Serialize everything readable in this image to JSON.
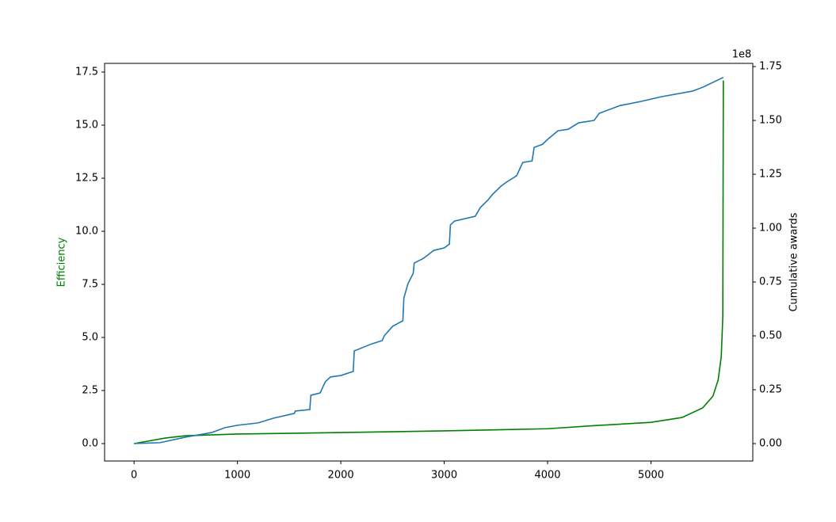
{
  "chart_data": {
    "type": "line",
    "ylabel": "Efficiency",
    "ylabel_color": "#008000",
    "y2label": "Cumulative awards",
    "y2_offset": "1e8",
    "xlim": [
      -285,
      5985
    ],
    "xticks": [
      0,
      1000,
      2000,
      3000,
      4000,
      5000
    ],
    "ylim": [
      -0.82,
      17.91
    ],
    "yticks": [
      {
        "value": 0,
        "label": "0.0"
      },
      2.5,
      {
        "value": 5,
        "label": "5.0"
      },
      7.5,
      {
        "value": 10,
        "label": "10.0"
      },
      12.5,
      {
        "value": 15,
        "label": "15.0"
      },
      17.5
    ],
    "y2lim": [
      -8100000,
      176500000
    ],
    "y2ticks": [
      {
        "value": 0,
        "label": "0.00"
      },
      {
        "value": 25000000,
        "label": "0.25"
      },
      {
        "value": 50000000,
        "label": "0.50"
      },
      {
        "value": 75000000,
        "label": "0.75"
      },
      {
        "value": 100000000,
        "label": "1.00"
      },
      {
        "value": 125000000,
        "label": "1.25"
      },
      {
        "value": 150000000,
        "label": "1.50"
      },
      {
        "value": 175000000,
        "label": "1.75"
      }
    ],
    "series": [
      {
        "color": "#008000",
        "x": [
          0,
          300,
          500,
          1000,
          2000,
          3000,
          4000,
          4500,
          5000,
          5300,
          5500,
          5600,
          5650,
          5680,
          5695,
          5700
        ],
        "values": [
          0,
          0.26,
          0.37,
          0.45,
          0.52,
          0.6,
          0.7,
          0.86,
          1.0,
          1.23,
          1.68,
          2.24,
          3.0,
          4.1,
          6.0,
          17.1
        ]
      },
      {
        "color": "#1f77b4",
        "axis": "y2",
        "x": [
          0,
          250,
          500,
          750,
          880,
          1000,
          1200,
          1350,
          1550,
          1560,
          1700,
          1710,
          1800,
          1850,
          1900,
          2000,
          2120,
          2130,
          2300,
          2400,
          2420,
          2500,
          2600,
          2610,
          2650,
          2700,
          2710,
          2800,
          2900,
          3000,
          3050,
          3060,
          3100,
          3300,
          3350,
          3420,
          3470,
          3550,
          3600,
          3700,
          3760,
          3850,
          3870,
          3950,
          4000,
          4100,
          4200,
          4300,
          4450,
          4500,
          4700,
          4900,
          5100,
          5400,
          5500,
          5700
        ],
        "values": [
          0,
          400000,
          3000000,
          5100000,
          7400000,
          8500000,
          9600000,
          11800000,
          14000000,
          15100000,
          15800000,
          22400000,
          23500000,
          28700000,
          30900000,
          31600000,
          33500000,
          43000000,
          46300000,
          47800000,
          50000000,
          54400000,
          57000000,
          67600000,
          74300000,
          79000000,
          83800000,
          86000000,
          89700000,
          90800000,
          92600000,
          101500000,
          103300000,
          105500000,
          109600000,
          112900000,
          115800000,
          119500000,
          121300000,
          124300000,
          130500000,
          131200000,
          137500000,
          138900000,
          141200000,
          145200000,
          145900000,
          148900000,
          150000000,
          153300000,
          156900000,
          158800000,
          161000000,
          163600000,
          165400000,
          170000000
        ]
      }
    ]
  }
}
